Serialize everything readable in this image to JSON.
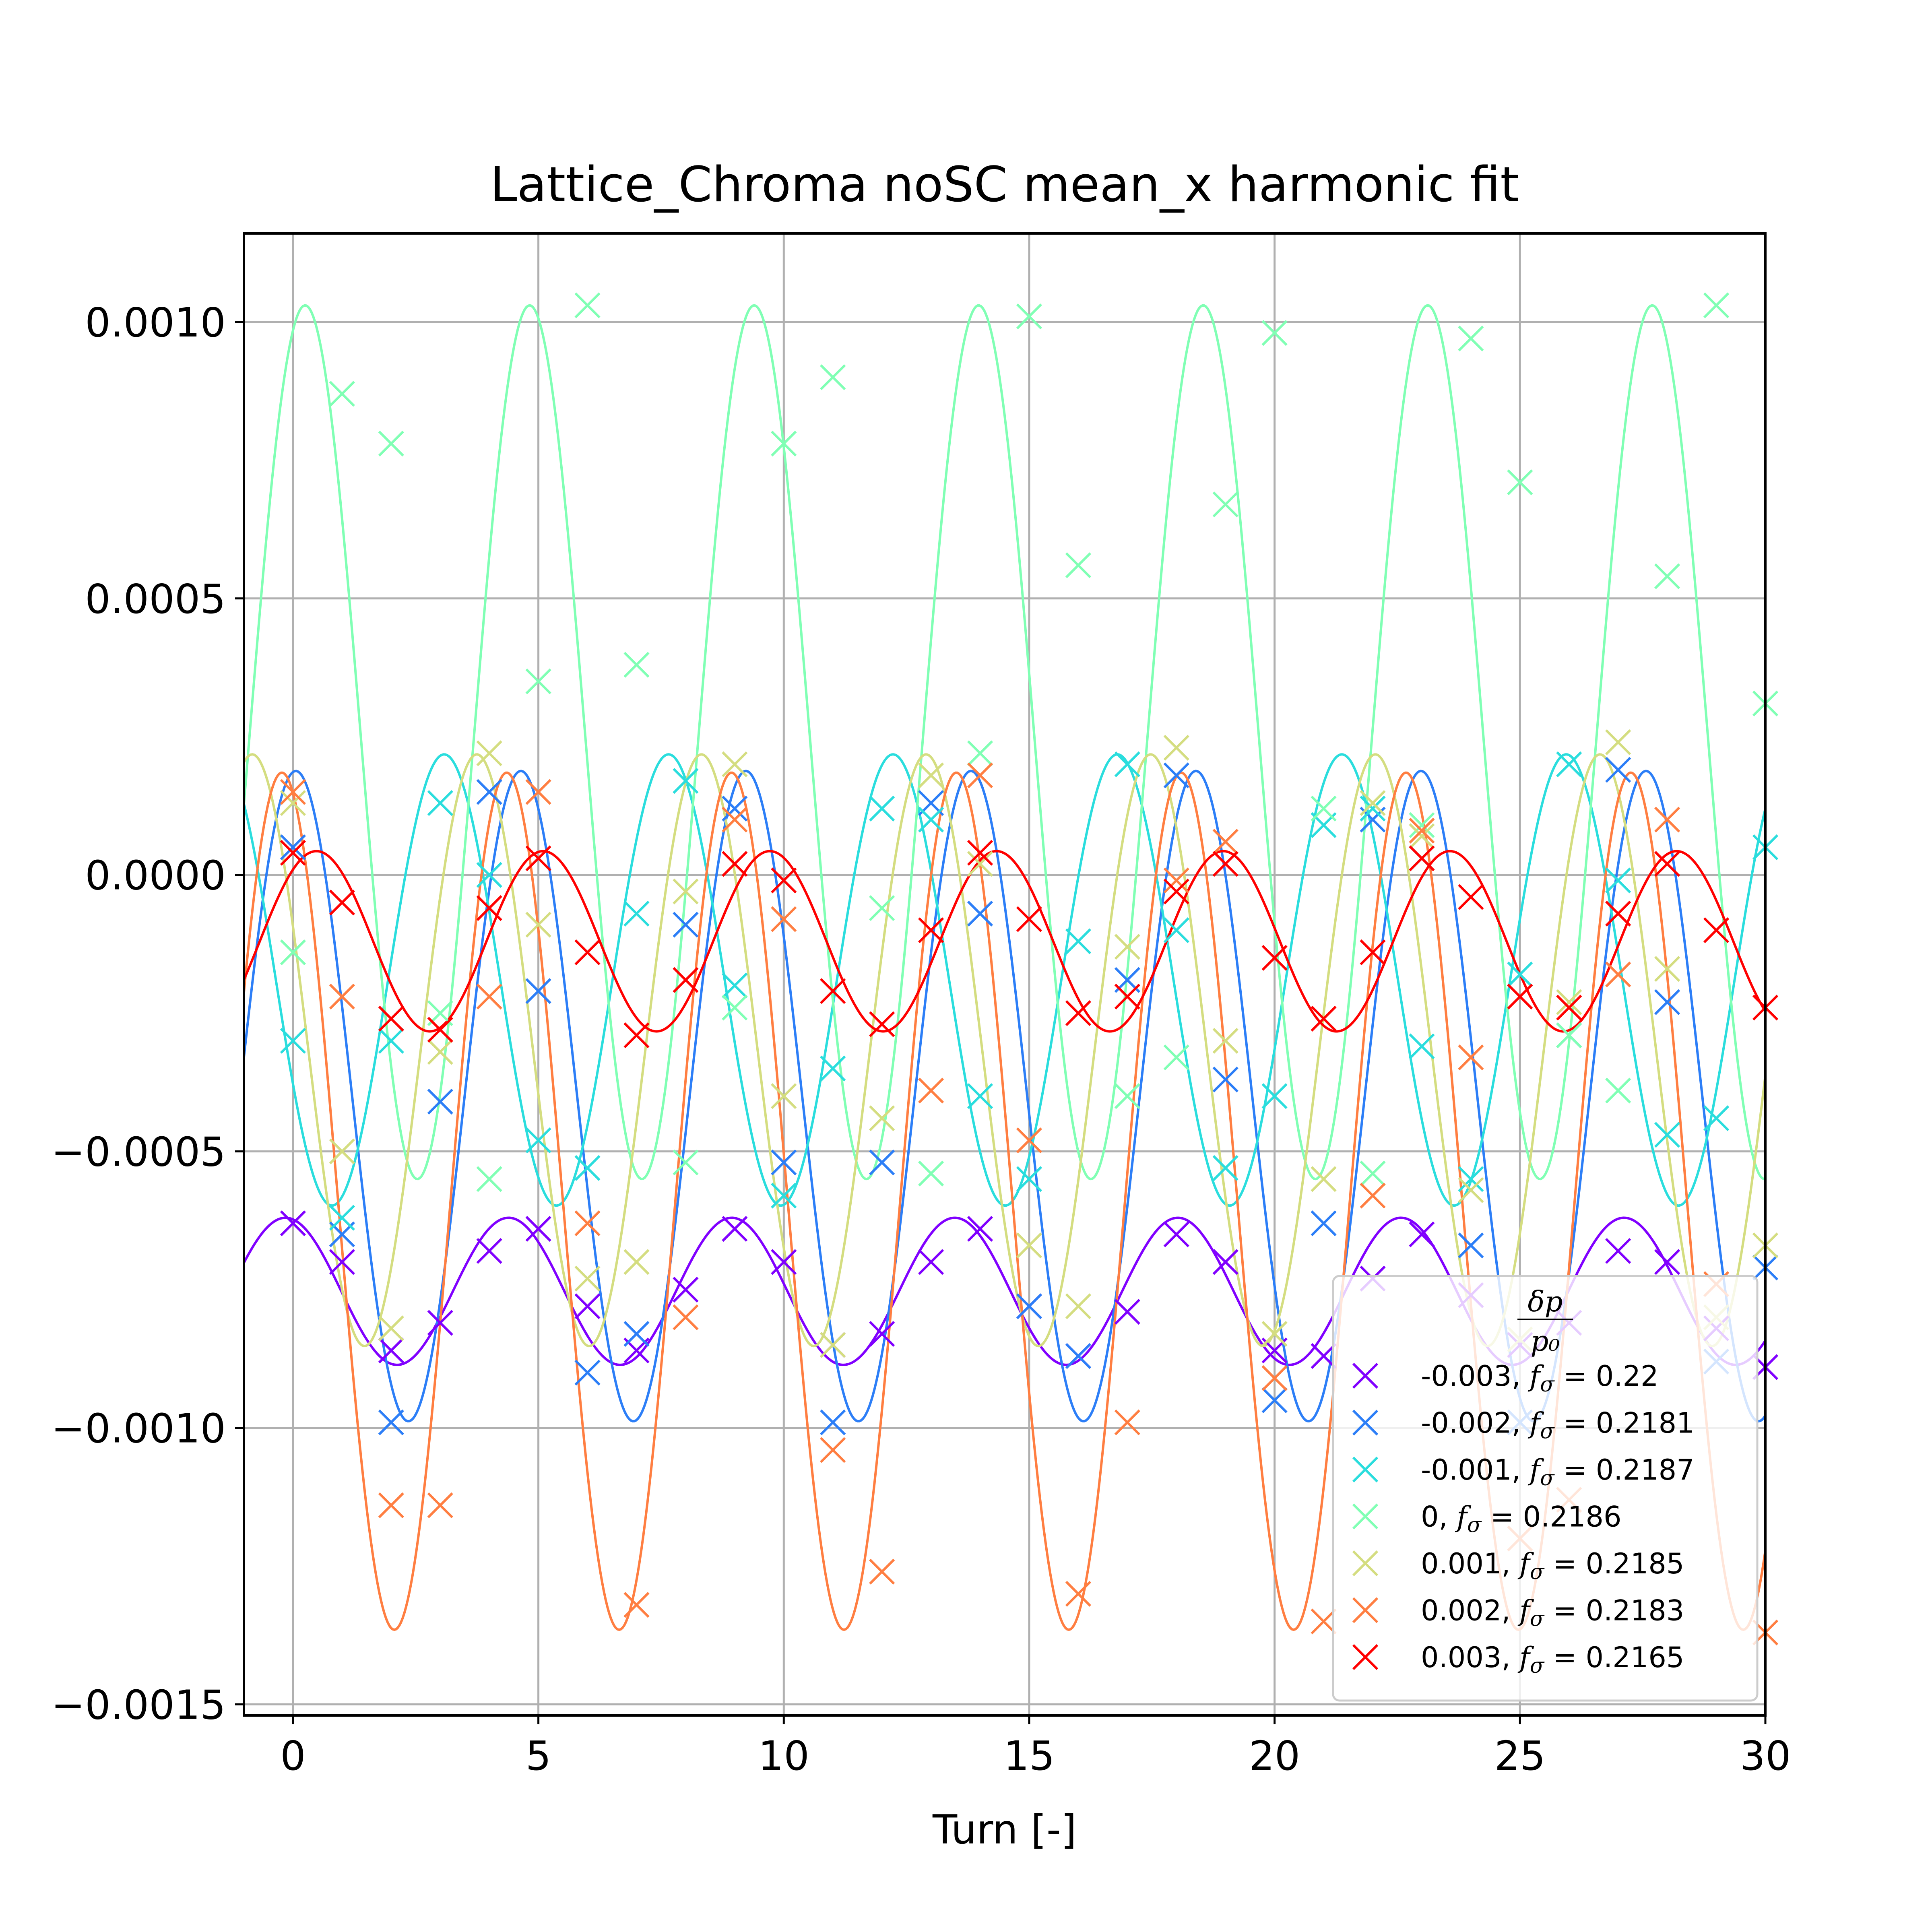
{
  "chart_data": {
    "type": "line",
    "title": "Lattice_Chroma noSC mean_x harmonic fit",
    "xlabel": "Turn [-]",
    "ylabel": "",
    "xlim": [
      -1,
      30
    ],
    "ylim": [
      -0.00152,
      0.00116
    ],
    "x_ticks": [
      0,
      5,
      10,
      15,
      20,
      25,
      30
    ],
    "x_tick_labels": [
      "0",
      "5",
      "10",
      "15",
      "20",
      "25",
      "30"
    ],
    "y_ticks": [
      -0.0015,
      -0.001,
      -0.0005,
      0.0,
      0.0005,
      0.001
    ],
    "y_tick_labels": [
      "−0.0015",
      "−0.0010",
      "−0.0005",
      "0.0000",
      "0.0005",
      "0.0010"
    ],
    "grid": true,
    "legend": {
      "title_numerator": "δp",
      "title_denominator": "p₀",
      "placement": "lower-right"
    },
    "series": [
      {
        "name": "-0.003, fσ = 0.22",
        "label_value": "-0.003",
        "label_freq": "0.22",
        "color": "#8000ff",
        "fit": {
          "freq": 0.22,
          "amplitude": 0.000133,
          "offset": -0.000753,
          "phase": 0.21
        },
        "x": [
          0,
          1,
          2,
          3,
          4,
          5,
          6,
          7,
          8,
          9,
          10,
          11,
          12,
          13,
          14,
          15,
          16,
          17,
          18,
          19,
          20,
          21,
          22,
          23,
          24,
          25,
          26,
          27,
          28,
          29,
          30
        ],
        "values": [
          -0.00063,
          -0.0007,
          -0.00086,
          -0.00081,
          -0.00068,
          -0.00064,
          -0.00078,
          -0.00086,
          -0.00075,
          -0.00064,
          -0.0007,
          -0.00085,
          -0.00083,
          -0.0007,
          -0.00064,
          -0.00078,
          -0.00087,
          -0.00079,
          -0.00065,
          -0.0007,
          -0.00086,
          -0.00087,
          -0.00073,
          -0.00065,
          -0.00076,
          -0.00085,
          -0.00081,
          -0.00068,
          -0.0007,
          -0.00082,
          -0.00089
        ]
      },
      {
        "name": "-0.002, fσ = 0.2181",
        "label_value": "-0.002",
        "label_freq": "0.2181",
        "color": "#2c7ef7",
        "fit": {
          "freq": 0.2181,
          "amplitude": 0.000588,
          "offset": -0.0004,
          "phase": -0.08
        },
        "x": [
          0,
          1,
          2,
          3,
          4,
          5,
          6,
          7,
          8,
          9,
          10,
          11,
          12,
          13,
          14,
          15,
          16,
          17,
          18,
          19,
          20,
          21,
          22,
          23,
          24,
          25,
          26,
          27,
          28,
          29,
          30
        ],
        "values": [
          5e-05,
          -0.00065,
          -0.00099,
          -0.00041,
          0.00015,
          -0.00021,
          -0.0009,
          -0.00083,
          -9e-05,
          0.00012,
          -0.00052,
          -0.00099,
          -0.00052,
          0.00013,
          -7e-05,
          -0.00078,
          -0.00087,
          -0.00019,
          0.00018,
          -0.00037,
          -0.00095,
          -0.00063,
          0.0001,
          3e-05,
          -0.00067,
          -0.00099,
          -0.00029,
          0.00019,
          -0.00023,
          -0.00088,
          -0.00071
        ]
      },
      {
        "name": "-0.001, fσ = 0.2187",
        "label_value": "-0.001",
        "label_freq": "0.2187",
        "color": "#2adddd",
        "fit": {
          "freq": 0.2187,
          "amplitude": 0.000408,
          "offset": -0.00019,
          "phase": 2.05
        },
        "x": [
          0,
          1,
          2,
          3,
          4,
          5,
          6,
          7,
          8,
          9,
          10,
          11,
          12,
          13,
          14,
          15,
          16,
          17,
          18,
          19,
          20,
          21,
          22,
          23,
          24,
          25,
          26,
          27,
          28,
          29,
          30
        ],
        "values": [
          -0.0003,
          -0.00062,
          -0.0003,
          0.00013,
          0.0,
          -0.00048,
          -0.00053,
          -7e-05,
          0.00017,
          -0.0002,
          -0.00058,
          -0.00035,
          0.00012,
          0.0001,
          -0.0004,
          -0.00055,
          -0.00012,
          0.0002,
          -0.0001,
          -0.00053,
          -0.0004,
          9e-05,
          0.00012,
          -0.00031,
          -0.00055,
          -0.00018,
          0.0002,
          -1e-05,
          -0.00047,
          -0.00044,
          5e-05
        ]
      },
      {
        "name": "0, fσ = 0.2186",
        "label_value": "0",
        "label_freq": "0.2186",
        "color": "#80ffb4",
        "fit": {
          "freq": 0.2186,
          "amplitude": 0.00079,
          "offset": 0.00024,
          "phase": -0.34
        },
        "x": [
          0,
          1,
          2,
          3,
          4,
          5,
          6,
          7,
          8,
          9,
          10,
          11,
          12,
          13,
          14,
          15,
          16,
          17,
          18,
          19,
          20,
          21,
          22,
          23,
          24,
          25,
          26,
          27,
          28,
          29,
          30
        ],
        "values": [
          -0.00014,
          0.00087,
          0.00078,
          -0.00025,
          -0.00055,
          0.00035,
          0.00103,
          0.00038,
          -0.00052,
          -0.00024,
          0.00078,
          0.0009,
          -6e-05,
          -0.00054,
          0.00022,
          0.00101,
          0.00056,
          -0.0004,
          -0.00033,
          0.00067,
          0.00098,
          0.00012,
          -0.00054,
          9e-05,
          0.00097,
          0.00071,
          -0.00029,
          -0.00039,
          0.00054,
          0.00103,
          0.00031
        ]
      },
      {
        "name": "0.001, fσ = 0.2185",
        "label_value": "0.001",
        "label_freq": "0.2185",
        "color": "#d4dd80",
        "fit": {
          "freq": 0.2185,
          "amplitude": 0.000535,
          "offset": -0.000317,
          "phase": 1.14
        },
        "x": [
          0,
          1,
          2,
          3,
          4,
          5,
          6,
          7,
          8,
          9,
          10,
          11,
          12,
          13,
          14,
          15,
          16,
          17,
          18,
          19,
          20,
          21,
          22,
          23,
          24,
          25,
          26,
          27,
          28,
          29,
          30
        ],
        "values": [
          0.00013,
          -0.0005,
          -0.00082,
          -0.00032,
          0.00022,
          -9e-05,
          -0.00073,
          -0.0007,
          -3e-05,
          0.0002,
          -0.0004,
          -0.00085,
          -0.00044,
          0.00018,
          2e-05,
          -0.00067,
          -0.00078,
          -0.00013,
          0.00023,
          -0.0003,
          -0.00083,
          -0.00055,
          0.00013,
          7e-05,
          -0.00057,
          -0.00084,
          -0.00023,
          0.00024,
          -0.00017,
          -0.0008,
          -0.00067
        ]
      },
      {
        "name": "0.002, fσ = 0.2183",
        "label_value": "0.002",
        "label_freq": "0.2183",
        "color": "#ff7e41",
        "fit": {
          "freq": 0.2183,
          "amplitude": 0.000775,
          "offset": -0.00059,
          "phase": 0.31
        },
        "x": [
          0,
          1,
          2,
          3,
          4,
          5,
          6,
          7,
          8,
          9,
          10,
          11,
          12,
          13,
          14,
          15,
          16,
          17,
          18,
          19,
          20,
          21,
          22,
          23,
          24,
          25,
          26,
          27,
          28,
          29,
          30
        ],
        "values": [
          0.00015,
          -0.00022,
          -0.00114,
          -0.00114,
          -0.00022,
          0.00015,
          -0.00063,
          -0.00132,
          -0.0008,
          0.0001,
          -8e-05,
          -0.00104,
          -0.00126,
          -0.00039,
          0.00018,
          -0.00048,
          -0.0013,
          -0.00099,
          -1e-05,
          6e-05,
          -0.00091,
          -0.00135,
          -0.00058,
          8e-05,
          -0.00033,
          -0.0012,
          -0.00113,
          -0.00018,
          0.0001,
          -0.00074,
          -0.00137
        ]
      },
      {
        "name": "0.003, fσ = 0.2165",
        "label_value": "0.003",
        "label_freq": "0.2165",
        "color": "#ff0000",
        "fit": {
          "freq": 0.2165,
          "amplitude": 0.000163,
          "offset": -0.00012,
          "phase": -0.65
        },
        "x": [
          0,
          1,
          2,
          3,
          4,
          5,
          6,
          7,
          8,
          9,
          10,
          11,
          12,
          13,
          14,
          15,
          16,
          17,
          18,
          19,
          20,
          21,
          22,
          23,
          24,
          25,
          26,
          27,
          28,
          29,
          30
        ],
        "values": [
          4e-05,
          -5e-05,
          -0.00026,
          -0.00028,
          -6e-05,
          3e-05,
          -0.00014,
          -0.00029,
          -0.00019,
          2e-05,
          -1e-05,
          -0.00021,
          -0.00027,
          -0.0001,
          4e-05,
          -8e-05,
          -0.00025,
          -0.00022,
          -3e-05,
          2e-05,
          -0.00015,
          -0.00026,
          -0.00014,
          3e-05,
          -4e-05,
          -0.00022,
          -0.00024,
          -7e-05,
          2e-05,
          -0.0001,
          -0.00024
        ]
      }
    ]
  }
}
